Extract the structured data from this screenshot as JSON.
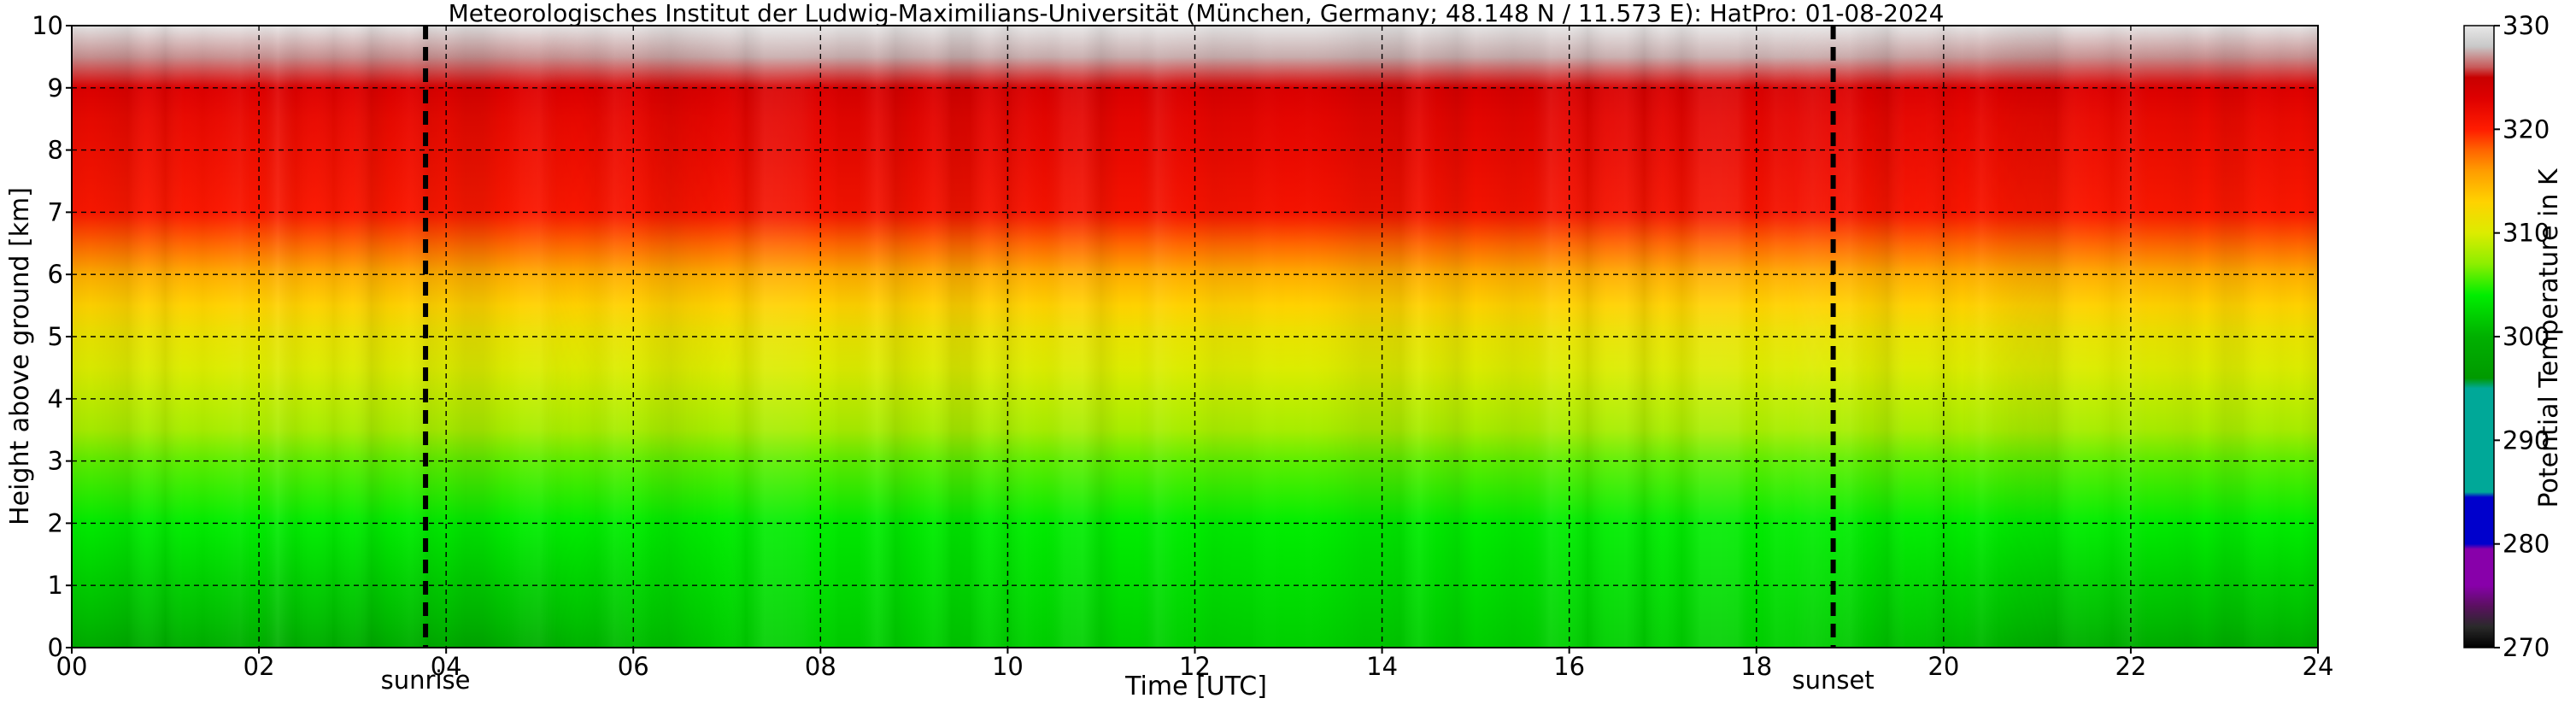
{
  "chart_data": {
    "type": "heatmap",
    "title": "Meteorologisches Institut der Ludwig-Maximilians-Universität (München, Germany; 48.148 N / 11.573 E):    HatPro: 01-08-2024",
    "xlabel": "Time [UTC]",
    "ylabel": "Height above ground [km]",
    "xlim": [
      0,
      24
    ],
    "ylim": [
      0,
      10
    ],
    "x_ticks": [
      "00",
      "02",
      "04",
      "06",
      "08",
      "10",
      "12",
      "14",
      "16",
      "18",
      "20",
      "22",
      "24"
    ],
    "y_ticks": [
      "0",
      "1",
      "2",
      "3",
      "4",
      "5",
      "6",
      "7",
      "8",
      "9",
      "10"
    ],
    "grid": true,
    "colorbar": {
      "label": "Potential Temperature in K",
      "range": [
        270,
        330
      ],
      "ticks": [
        "270",
        "280",
        "290",
        "300",
        "310",
        "320",
        "330"
      ]
    },
    "markers": [
      {
        "label": "sunrise",
        "x": 3.78
      },
      {
        "label": "sunset",
        "x": 18.82
      }
    ],
    "profile": {
      "height_km": [
        0,
        0.5,
        1,
        1.5,
        2,
        2.5,
        3,
        3.5,
        4,
        4.5,
        5,
        5.5,
        6,
        6.5,
        7,
        7.5,
        8,
        8.5,
        9,
        9.5,
        10
      ],
      "theta_K_night": [
        299.5,
        301,
        302,
        303,
        304,
        305,
        306,
        308,
        309,
        310,
        311,
        313,
        315,
        318,
        320.5,
        321,
        321.5,
        322,
        323,
        327,
        330
      ],
      "theta_K_day": [
        302,
        302.5,
        303,
        303.5,
        304,
        305,
        306,
        308,
        309,
        310,
        311,
        313,
        315,
        318,
        321,
        321.5,
        322,
        322.5,
        323.5,
        327.5,
        330
      ]
    }
  }
}
